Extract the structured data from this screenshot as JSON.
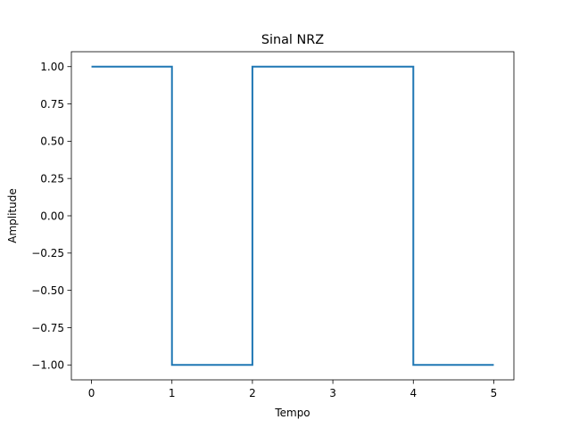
{
  "chart_data": {
    "type": "line",
    "title": "Sinal NRZ",
    "xlabel": "Tempo",
    "ylabel": "Amplitude",
    "xlim": [
      -0.25,
      5.25
    ],
    "ylim": [
      -1.1,
      1.1
    ],
    "x_ticks": [
      0,
      1,
      2,
      3,
      4,
      5
    ],
    "x_tick_labels": [
      "0",
      "1",
      "2",
      "3",
      "4",
      "5"
    ],
    "y_ticks": [
      1.0,
      0.75,
      0.5,
      0.25,
      0.0,
      -0.25,
      -0.5,
      -0.75,
      -1.0
    ],
    "y_tick_labels": [
      "1.00",
      "0.75",
      "0.50",
      "0.25",
      "0.00",
      "−0.25",
      "−0.50",
      "−0.75",
      "−1.00"
    ],
    "grid": false,
    "series": [
      {
        "color": "#1f77b4",
        "x": [
          0,
          1,
          1,
          2,
          2,
          3,
          4,
          4,
          5
        ],
        "y": [
          1,
          1,
          -1,
          -1,
          1,
          1,
          1,
          -1,
          -1
        ]
      }
    ]
  }
}
